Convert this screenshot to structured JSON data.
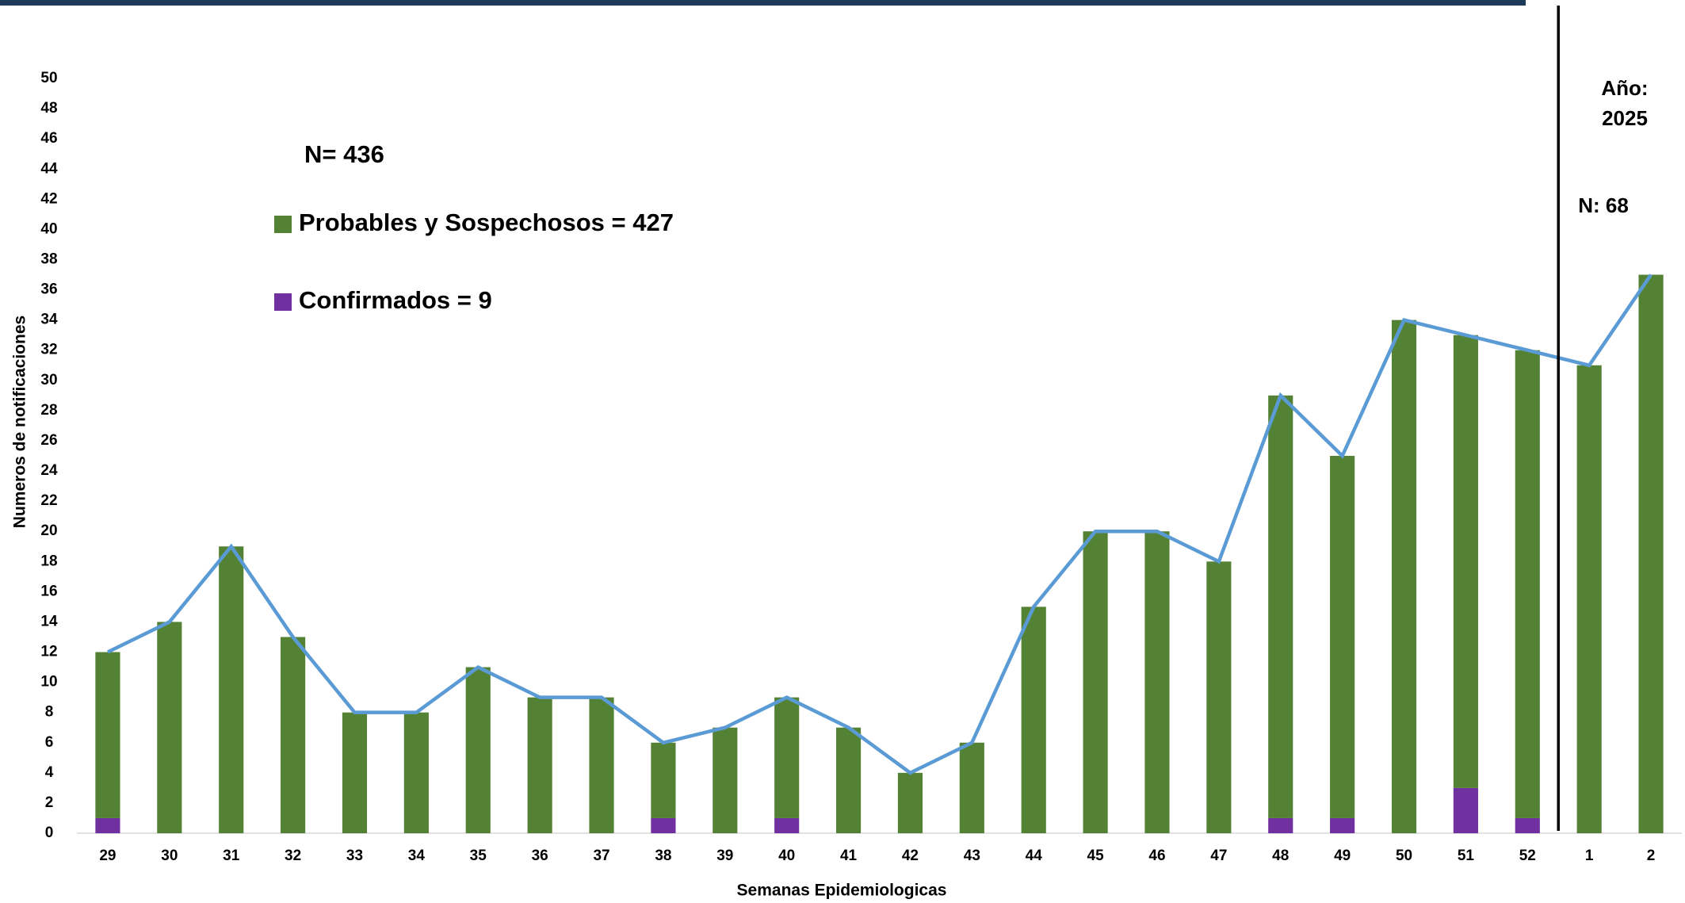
{
  "chart_data": {
    "type": "stacked-bar-line",
    "x_label": "Semanas Epidemiologicas",
    "y_label": "Numeros de notificaciones",
    "total_label": "N= 436",
    "year_label": "Año:",
    "year": "2025",
    "year_total_label": "N: 68",
    "categories": [
      "29",
      "30",
      "31",
      "32",
      "33",
      "34",
      "35",
      "36",
      "37",
      "38",
      "39",
      "40",
      "41",
      "42",
      "43",
      "44",
      "45",
      "46",
      "47",
      "48",
      "49",
      "50",
      "51",
      "52",
      "1",
      "2"
    ],
    "series": [
      {
        "name": "Confirmados = 9",
        "color": "#7030a0",
        "values": [
          1,
          0,
          0,
          0,
          0,
          0,
          0,
          0,
          0,
          1,
          0,
          1,
          0,
          0,
          0,
          0,
          0,
          0,
          0,
          1,
          1,
          0,
          3,
          1,
          0,
          0
        ]
      },
      {
        "name": "Probables y Sospechosos = 427",
        "color": "#548235",
        "values": [
          11,
          14,
          19,
          13,
          8,
          8,
          11,
          9,
          9,
          5,
          7,
          8,
          7,
          4,
          6,
          15,
          20,
          20,
          18,
          28,
          24,
          34,
          30,
          31,
          31,
          37
        ]
      }
    ],
    "total_line": {
      "color": "#5b9bd5",
      "values": [
        12,
        14,
        19,
        13,
        8,
        8,
        11,
        9,
        9,
        6,
        7,
        9,
        7,
        4,
        6,
        15,
        20,
        20,
        18,
        29,
        25,
        34,
        33,
        32,
        31,
        37
      ]
    },
    "ylim": [
      0,
      50
    ],
    "yticks": [
      0,
      2,
      4,
      6,
      8,
      10,
      12,
      14,
      16,
      18,
      20,
      22,
      24,
      26,
      28,
      30,
      32,
      34,
      36,
      38,
      40,
      42,
      44,
      46,
      48,
      50
    ]
  }
}
